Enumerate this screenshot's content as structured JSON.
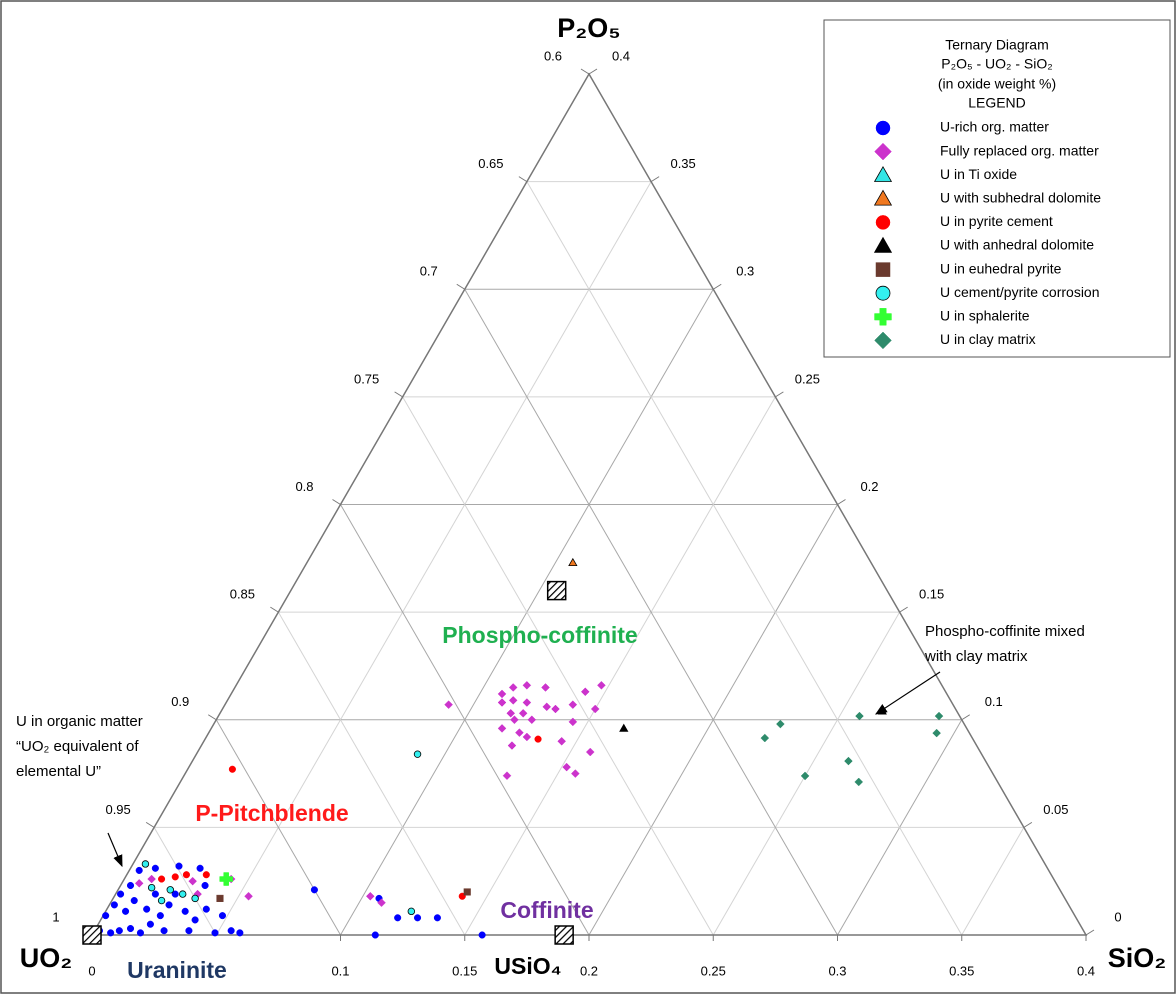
{
  "chart_data": {
    "type": "ternary",
    "vertex_labels": {
      "top": "P₂O₅",
      "left": "UO₂",
      "right": "SiO₂"
    },
    "p2o5_range": [
      0,
      0.4
    ],
    "sio2_range": [
      0,
      0.4
    ],
    "uo2_range": [
      0.6,
      1
    ],
    "p2o5_ticks": [
      0,
      0.05,
      0.1,
      0.15,
      0.2,
      0.25,
      0.3,
      0.35,
      0.4
    ],
    "uo2_ticks": [
      0.6,
      0.65,
      0.7,
      0.75,
      0.8,
      0.85,
      0.9,
      0.95,
      1
    ],
    "sio2_ticks": [
      0,
      0.1,
      0.15,
      0.2,
      0.25,
      0.3,
      0.35,
      0.4
    ],
    "grid": true,
    "legend": {
      "title": [
        "Ternary Diagram",
        "P₂O₅ - UO₂ - SiO₂",
        "(in oxide weight %)",
        "LEGEND"
      ],
      "position": "upper right"
    },
    "series": [
      {
        "name": "U-rich org. matter",
        "color": "#0000ff",
        "marker": "circle",
        "sio2": [
          0.079,
          0.107,
          0.119,
          0.127,
          0.135,
          0.114,
          0.157,
          0.055,
          0.059,
          0.049,
          0.002,
          0.007,
          0.01,
          0.014,
          0.019,
          0.021,
          0.001,
          0.002,
          0.008,
          0.009,
          0.016,
          0.023,
          0.024,
          0.032,
          0.038,
          0.004,
          0.004,
          0.01,
          0.019,
          0.028,
          0.034,
          0.024,
          0.002,
          0.028,
          0.038,
          0.04,
          0.048,
          0.016
        ],
        "p2o5": [
          0.021,
          0.017,
          0.008,
          0.008,
          0.008,
          0,
          0,
          0.002,
          0.001,
          0.001,
          0.002,
          0.001,
          0.002,
          0.003,
          0.001,
          0.005,
          0.009,
          0.014,
          0.011,
          0.016,
          0.012,
          0.009,
          0.014,
          0.011,
          0.007,
          0.023,
          0.03,
          0.031,
          0.032,
          0.031,
          0.023,
          0.019,
          0.019,
          0.002,
          0.002,
          0.012,
          0.009,
          0.019
        ]
      },
      {
        "name": "Fully replaced org. matter",
        "color": "#cc33cc",
        "marker": "diamond",
        "sio2": [
          0.09,
          0.109,
          0.112,
          0.117,
          0.125,
          0.147,
          0.142,
          0.111,
          0.115,
          0.121,
          0.13,
          0.134,
          0.14,
          0.15,
          0.117,
          0.122,
          0.12,
          0.127,
          0.144,
          0.117,
          0.125,
          0.125,
          0.129,
          0.144,
          0.158,
          0.152,
          0.157,
          0.13,
          0.103,
          0.109,
          0.054,
          0.011,
          0.007,
          0.028,
          0.033,
          0.043
        ],
        "p2o5": [
          0.107,
          0.112,
          0.115,
          0.116,
          0.115,
          0.116,
          0.113,
          0.108,
          0.109,
          0.108,
          0.106,
          0.105,
          0.107,
          0.105,
          0.103,
          0.103,
          0.1,
          0.1,
          0.099,
          0.096,
          0.094,
          0.088,
          0.092,
          0.09,
          0.085,
          0.078,
          0.075,
          0.074,
          0.018,
          0.015,
          0.018,
          0.026,
          0.024,
          0.025,
          0.019,
          0.026
        ]
      },
      {
        "name": "U in Ti oxide",
        "color": "#33e6e6",
        "marker": "triangle",
        "sio2": [],
        "p2o5": []
      },
      {
        "name": "U with subhedral dolomite",
        "color": "#f07820",
        "marker": "triangle",
        "sio2": [
          0.107
        ],
        "p2o5": [
          0.173
        ]
      },
      {
        "name": "U in pyrite cement",
        "color": "#ff0000",
        "marker": "circle",
        "sio2": [
          0.018,
          0.134,
          0.14,
          0.02,
          0.024,
          0.032,
          0.015
        ],
        "p2o5": [
          0.077,
          0.091,
          0.018,
          0.027,
          0.028,
          0.028,
          0.026
        ]
      },
      {
        "name": "U with anhedral dolomite",
        "color": "#000000",
        "marker": "triangle",
        "sio2": [
          0.166,
          0.266
        ],
        "p2o5": [
          0.096,
          0.104
        ]
      },
      {
        "name": "U in euhedral pyrite",
        "color": "#6b3a2e",
        "marker": "square",
        "sio2": [
          0.141,
          0.043
        ],
        "p2o5": [
          0.02,
          0.017
        ]
      },
      {
        "name": "U cement/pyrite corrosion",
        "color": "#33f0f0",
        "marker": "circle",
        "sio2": [
          0.089,
          0.123,
          0.005,
          0.013,
          0.02,
          0.021,
          0.027,
          0.033
        ],
        "p2o5": [
          0.084,
          0.011,
          0.033,
          0.022,
          0.016,
          0.021,
          0.019,
          0.017
        ]
      },
      {
        "name": "U in sphalerite",
        "color": "#33ff33",
        "marker": "plus",
        "sio2": [
          0.041
        ],
        "p2o5": [
          0.026
        ]
      },
      {
        "name": "U in clay matrix",
        "color": "#2e8b6b",
        "marker": "diamond",
        "sio2": [
          0.225,
          0.228,
          0.258,
          0.29,
          0.293,
          0.25,
          0.264,
          0.273
        ],
        "p2o5": [
          0.0915,
          0.098,
          0.1017,
          0.1017,
          0.0938,
          0.0739,
          0.0808,
          0.0711
        ]
      }
    ],
    "end_members": {
      "sio2": [
        0,
        0.19,
        0.107
      ],
      "p2o5": [
        0,
        0,
        0.16
      ]
    },
    "regions": [
      {
        "label": "Phospho-coffinite",
        "color": "#1fb050"
      },
      {
        "label": "P-Pitchblende",
        "color": "#ff1a1a"
      },
      {
        "label": "Coffinite",
        "color": "#7030a0"
      },
      {
        "label": "Uraninite",
        "color": "#1f3864"
      },
      {
        "label": "USiO₄",
        "color": "#000000"
      }
    ],
    "annotations": [
      {
        "lines": [
          "U in organic matter",
          "“UO₂ equivalent of",
          "elemental U”"
        ]
      },
      {
        "lines": [
          "Phospho-coffinite mixed",
          "with clay matrix"
        ]
      }
    ]
  }
}
